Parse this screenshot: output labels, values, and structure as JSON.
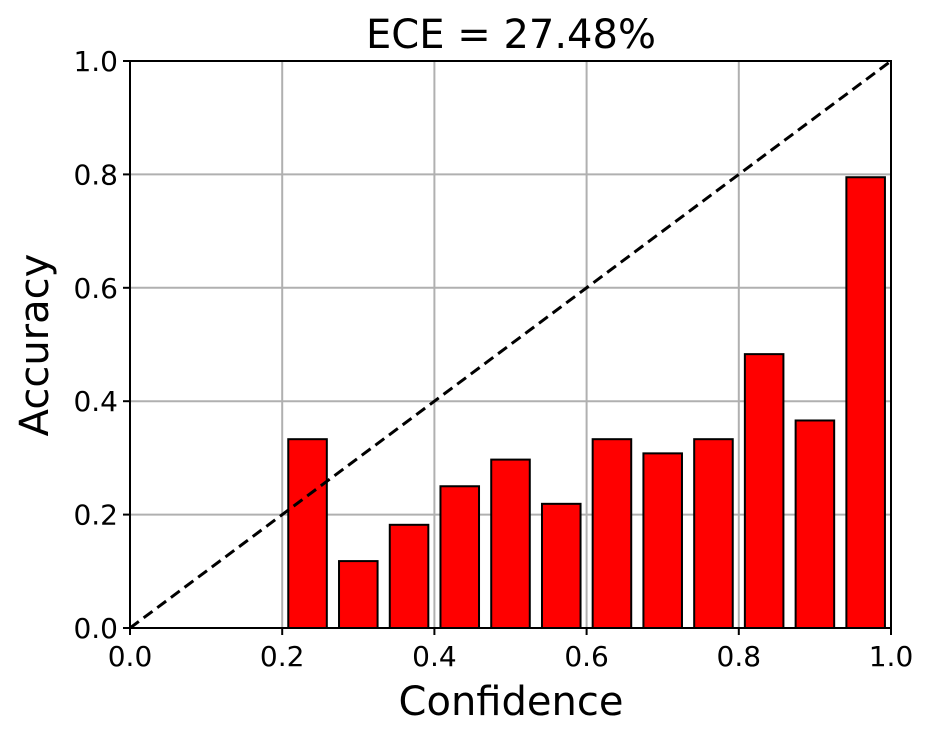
{
  "chart_data": {
    "type": "bar",
    "title": "ECE = 27.48%",
    "xlabel": "Confidence",
    "ylabel": "Accuracy",
    "xlim": [
      0.0,
      1.0
    ],
    "ylim": [
      0.0,
      1.0
    ],
    "x_ticks": [
      "0.0",
      "0.2",
      "0.4",
      "0.6",
      "0.8",
      "1.0"
    ],
    "y_ticks": [
      "0.0",
      "0.2",
      "0.4",
      "0.6",
      "0.8",
      "1.0"
    ],
    "grid": true,
    "bar_color": "#ff0000",
    "bar_edge_color": "#000000",
    "reference_line": {
      "style": "dashed",
      "color": "#000000",
      "from": [
        0.0,
        0.0
      ],
      "to": [
        1.0,
        1.0
      ]
    },
    "bins": [
      {
        "x": 0.2333,
        "value": 0.333
      },
      {
        "x": 0.3,
        "value": 0.118
      },
      {
        "x": 0.3667,
        "value": 0.182
      },
      {
        "x": 0.4333,
        "value": 0.25
      },
      {
        "x": 0.5,
        "value": 0.297
      },
      {
        "x": 0.5667,
        "value": 0.219
      },
      {
        "x": 0.6333,
        "value": 0.333
      },
      {
        "x": 0.7,
        "value": 0.308
      },
      {
        "x": 0.7667,
        "value": 0.333
      },
      {
        "x": 0.8333,
        "value": 0.483
      },
      {
        "x": 0.9,
        "value": 0.366
      },
      {
        "x": 0.9667,
        "value": 0.795
      }
    ]
  }
}
